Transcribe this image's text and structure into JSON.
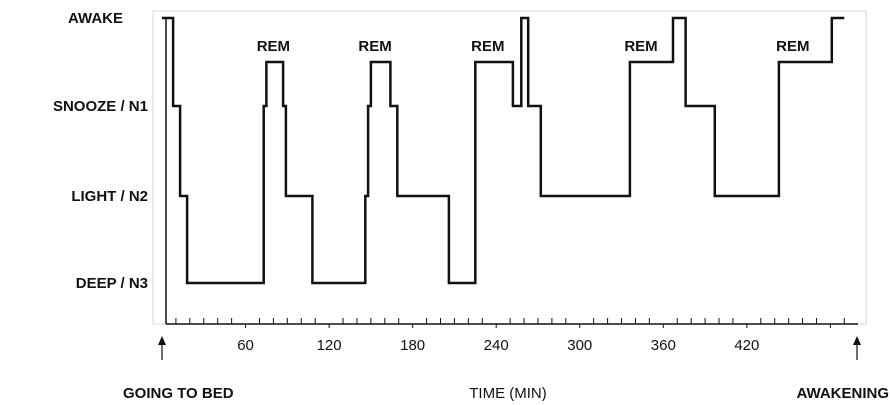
{
  "chart_data": {
    "type": "line",
    "xlabel": "TIME (MIN)",
    "xlim": [
      -10,
      500
    ],
    "x_ticks": [
      60,
      120,
      180,
      240,
      300,
      360,
      420
    ],
    "y_levels": [
      "DEEP / N3",
      "LIGHT / N2",
      "SNOOZE / N1",
      "AWAKE"
    ],
    "grid": false,
    "series": [
      {
        "step_points": [
          [
            0,
            3
          ],
          [
            8,
            3
          ],
          [
            8,
            2
          ],
          [
            13,
            2
          ],
          [
            13,
            1
          ],
          [
            18,
            1
          ],
          [
            18,
            0
          ],
          [
            73,
            0
          ],
          [
            73,
            2
          ],
          [
            75,
            2
          ],
          [
            75,
            2.5
          ],
          [
            87,
            2.5
          ],
          [
            87,
            2
          ],
          [
            89,
            2
          ],
          [
            89,
            1
          ],
          [
            108,
            1
          ],
          [
            108,
            0
          ],
          [
            146,
            0
          ],
          [
            146,
            1
          ],
          [
            148,
            1
          ],
          [
            148,
            2
          ],
          [
            150,
            2
          ],
          [
            150,
            2.5
          ],
          [
            164,
            2.5
          ],
          [
            164,
            2
          ],
          [
            169,
            2
          ],
          [
            169,
            1
          ],
          [
            206,
            1
          ],
          [
            206,
            0
          ],
          [
            225,
            0
          ],
          [
            225,
            2.5
          ],
          [
            252,
            2.5
          ],
          [
            252,
            2
          ],
          [
            258,
            2
          ],
          [
            258,
            3
          ],
          [
            263,
            3
          ],
          [
            263,
            2
          ],
          [
            272,
            2
          ],
          [
            272,
            1
          ],
          [
            336,
            1
          ],
          [
            336,
            2.5
          ],
          [
            367,
            2.5
          ],
          [
            367,
            3
          ],
          [
            376,
            3
          ],
          [
            376,
            2
          ],
          [
            397,
            2
          ],
          [
            397,
            1
          ],
          [
            443,
            1
          ],
          [
            443,
            2.5
          ],
          [
            481,
            2.5
          ],
          [
            481,
            3
          ],
          [
            490,
            3
          ]
        ]
      }
    ],
    "annotations": [
      {
        "text": "REM",
        "x": 80
      },
      {
        "text": "REM",
        "x": 153
      },
      {
        "text": "REM",
        "x": 234
      },
      {
        "text": "REM",
        "x": 344
      },
      {
        "text": "REM",
        "x": 453
      }
    ],
    "start_label": "GOING TO BED",
    "end_label": "AWAKENING"
  }
}
